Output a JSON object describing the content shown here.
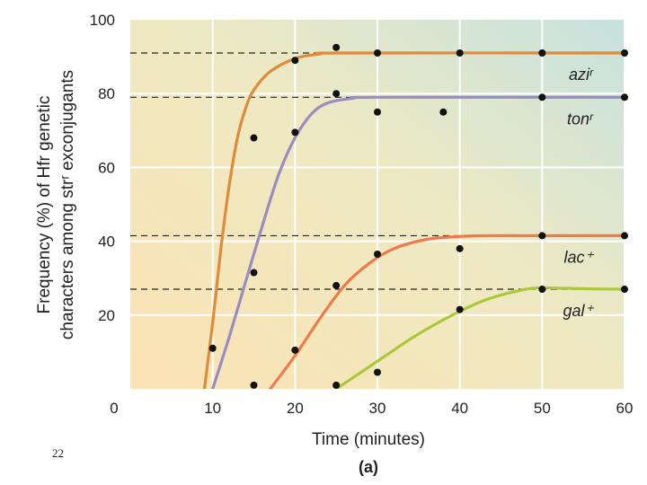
{
  "page_number": "22",
  "chart_data": {
    "type": "line",
    "xlabel": "Time (minutes)",
    "ylabel_lines": [
      "Frequency (%) of Hfr genetic",
      "characters among strʳ exconjugants"
    ],
    "panel_label": "(a)",
    "xlim": [
      0,
      60
    ],
    "ylim": [
      0,
      100
    ],
    "x_ticks": [
      0,
      10,
      20,
      30,
      40,
      50,
      60
    ],
    "y_ticks": [
      20,
      40,
      60,
      80,
      100
    ],
    "grid": true,
    "series": [
      {
        "name": "aziʳ",
        "color": "#e08a3a",
        "plateau": 91,
        "curve": [
          [
            9,
            0
          ],
          [
            10,
            18
          ],
          [
            11,
            38
          ],
          [
            12,
            55
          ],
          [
            13,
            68
          ],
          [
            14,
            76
          ],
          [
            15,
            81
          ],
          [
            17,
            86
          ],
          [
            20,
            89.5
          ],
          [
            23,
            90.7
          ],
          [
            26,
            91
          ],
          [
            60,
            91
          ]
        ],
        "points": [
          [
            10,
            11
          ],
          [
            15,
            68
          ],
          [
            20,
            89
          ],
          [
            25,
            92.5
          ],
          [
            30,
            91
          ],
          [
            40,
            91
          ],
          [
            50,
            91
          ],
          [
            60,
            91
          ]
        ]
      },
      {
        "name": "tonʳ",
        "color": "#9a8cc0",
        "plateau": 79,
        "curve": [
          [
            10,
            0
          ],
          [
            12,
            14
          ],
          [
            14,
            29
          ],
          [
            16,
            44
          ],
          [
            18,
            58
          ],
          [
            20,
            68
          ],
          [
            22,
            74.5
          ],
          [
            24,
            77.5
          ],
          [
            27,
            78.7
          ],
          [
            30,
            79
          ],
          [
            60,
            79
          ]
        ],
        "points": [
          [
            20,
            69.5
          ],
          [
            15,
            31.5
          ],
          [
            25,
            80
          ],
          [
            30,
            75
          ],
          [
            38,
            75
          ],
          [
            50,
            79
          ],
          [
            60,
            79
          ]
        ]
      },
      {
        "name": "lac⁺",
        "color": "#ef7a4a",
        "plateau": 41.5,
        "curve": [
          [
            17,
            0
          ],
          [
            20,
            9
          ],
          [
            23,
            19
          ],
          [
            26,
            28
          ],
          [
            29,
            34
          ],
          [
            32,
            38
          ],
          [
            36,
            40.5
          ],
          [
            40,
            41.3
          ],
          [
            44,
            41.5
          ],
          [
            60,
            41.5
          ]
        ],
        "points": [
          [
            15,
            1
          ],
          [
            20,
            10.5
          ],
          [
            25,
            28
          ],
          [
            30,
            36.5
          ],
          [
            40,
            38
          ],
          [
            50,
            41.5
          ],
          [
            60,
            41.5
          ]
        ]
      },
      {
        "name": "gal⁺",
        "color": "#a9c93a",
        "plateau": 27,
        "curve": [
          [
            25,
            0
          ],
          [
            28,
            4.5
          ],
          [
            31,
            9
          ],
          [
            34,
            13.5
          ],
          [
            37,
            17.5
          ],
          [
            40,
            21
          ],
          [
            43,
            24
          ],
          [
            46,
            26
          ],
          [
            49,
            27.3
          ],
          [
            52,
            27.3
          ],
          [
            56,
            27.1
          ],
          [
            60,
            27
          ]
        ],
        "points": [
          [
            25,
            1
          ],
          [
            30,
            4.5
          ],
          [
            40,
            21.5
          ],
          [
            50,
            27
          ],
          [
            60,
            27
          ]
        ]
      }
    ]
  }
}
